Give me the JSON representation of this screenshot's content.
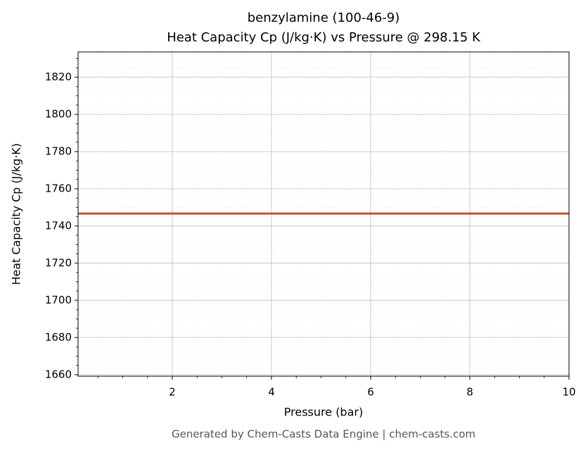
{
  "chart_data": {
    "type": "line",
    "title": "benzylamine (100-46-9)",
    "subtitle": "Heat Capacity Cp (J/kg·K) vs Pressure @ 298.15 K",
    "x_label": "Pressure (bar)",
    "y_label": "Heat Capacity Cp (J/kg·K)",
    "footer": "Generated by Chem-Casts Data Engine | chem-casts.com",
    "x": [
      0.1,
      1,
      2,
      3,
      4,
      5,
      6,
      7,
      8,
      9,
      10
    ],
    "series": [
      {
        "name": "Cp",
        "color": "#c4532b",
        "values": [
          1746.7,
          1746.7,
          1746.7,
          1746.7,
          1746.7,
          1746.7,
          1746.7,
          1746.7,
          1746.7,
          1746.7,
          1746.7
        ]
      }
    ],
    "xlim": [
      0.1,
      10
    ],
    "ylim": [
      1659.2,
      1833.6
    ],
    "xticks": [
      2,
      4,
      6,
      8,
      10
    ],
    "yticks": [
      1660,
      1680,
      1700,
      1720,
      1740,
      1760,
      1780,
      1800,
      1820
    ],
    "grid": true,
    "minor_grid": true
  }
}
